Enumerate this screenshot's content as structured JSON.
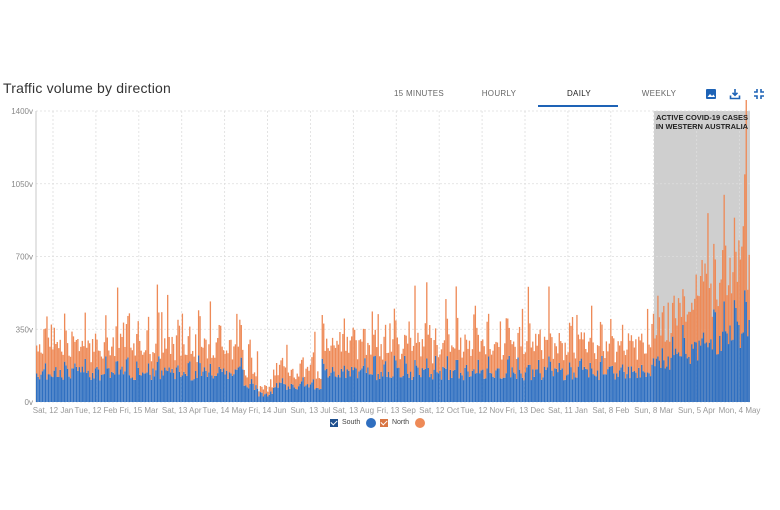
{
  "header": {
    "title": "Traffic volume by direction",
    "tabs": [
      {
        "label": "15 MINUTES",
        "active": false
      },
      {
        "label": "HOURLY",
        "active": false
      },
      {
        "label": "DAILY",
        "active": true
      },
      {
        "label": "WEEKLY",
        "active": false
      }
    ],
    "tools": [
      "image-icon",
      "download-icon",
      "collapse-icon"
    ]
  },
  "colors": {
    "south": "#2f6fc0",
    "north": "#ee8a57",
    "band": "#cfcfcf",
    "grid": "#dddddd",
    "accent": "#1e63b6"
  },
  "legend": [
    {
      "label": "South",
      "color": "#2f6fc0"
    },
    {
      "label": "North",
      "color": "#ee8a57"
    }
  ],
  "chart_data": {
    "type": "bar",
    "stacked": true,
    "title": "Traffic volume by direction",
    "annotation": "ACTIVE COVID-19 CASES IN WESTERN AUSTRALIA",
    "annotation_range": [
      "Sun, 8 Mar",
      "Mon, 4 May"
    ],
    "ylim": [
      0,
      1400
    ],
    "y_ticks": [
      "0v",
      "350v",
      "700v",
      "1050v",
      "1400v"
    ],
    "x_tick_labels": [
      "Sat, 12 Jan",
      "Tue, 12 Feb",
      "Fri, 15 Mar",
      "Sat, 13 Apr",
      "Tue, 14 May",
      "Fri, 14 Jun",
      "Sun, 13 Jul",
      "Sat, 13 Aug",
      "Fri, 13 Sep",
      "Sat, 12 Oct",
      "Tue, 12 Nov",
      "Fri, 13 Dec",
      "Sat, 11 Jan",
      "Sat, 8 Feb",
      "Sun, 8 Mar",
      "Sun, 5 Apr",
      "Mon, 4 May"
    ],
    "grid": true,
    "series": [
      {
        "name": "South",
        "approx_values": "daily counts, mostly 100–250v, rising to ~350–450v in Apr–May"
      },
      {
        "name": "North",
        "approx_values": "daily counts, mostly 80–200v, peaks ~350v, rising to ~500–700v in Apr–May"
      }
    ]
  }
}
